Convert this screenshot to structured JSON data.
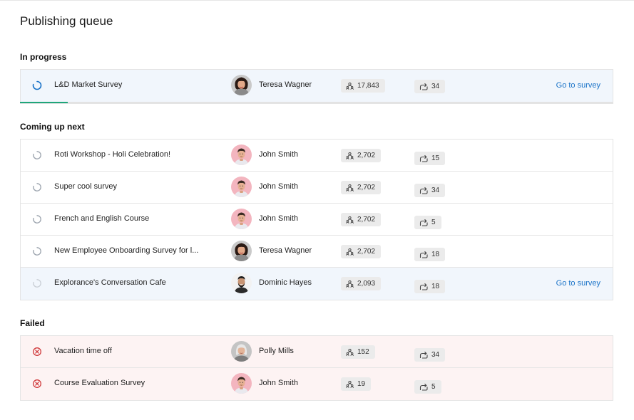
{
  "page": {
    "title": "Publishing queue"
  },
  "sections": {
    "in_progress": {
      "heading": "In progress",
      "rows": [
        {
          "status": "in-progress",
          "survey": "L&D Market Survey",
          "owner": "Teresa Wagner",
          "avatar": "teresa",
          "responses": "17,843",
          "shares": "34",
          "link": "Go to survey",
          "progress": 0.08
        }
      ]
    },
    "next": {
      "heading": "Coming up next",
      "rows": [
        {
          "status": "queued",
          "survey": "Roti Workshop - Holi Celebration!",
          "owner": "John Smith",
          "avatar": "john",
          "responses": "2,702",
          "shares": "15"
        },
        {
          "status": "queued",
          "survey": "Super cool survey",
          "owner": "John Smith",
          "avatar": "john",
          "responses": "2,702",
          "shares": "34"
        },
        {
          "status": "queued",
          "survey": "French and English Course",
          "owner": "John Smith",
          "avatar": "john",
          "responses": "2,702",
          "shares": "5"
        },
        {
          "status": "queued",
          "survey": "New Employee Onboarding Survey for l...",
          "owner": "Teresa Wagner",
          "avatar": "teresa",
          "responses": "2,702",
          "shares": "18"
        },
        {
          "status": "queued",
          "survey": "Explorance's Conversation Cafe",
          "owner": "Dominic Hayes",
          "avatar": "dominic",
          "responses": "2,093",
          "shares": "18",
          "link": "Go to survey"
        }
      ]
    },
    "failed": {
      "heading": "Failed",
      "rows": [
        {
          "status": "failed",
          "survey": "Vacation time off",
          "owner": "Polly Mills",
          "avatar": "polly",
          "responses": "152",
          "shares": "34"
        },
        {
          "status": "failed",
          "survey": "Course Evaluation Survey",
          "owner": "John Smith",
          "avatar": "john",
          "responses": "19",
          "shares": "5"
        }
      ]
    }
  },
  "colors": {
    "accent": "#1a73c8",
    "progress": "#1fa67a",
    "failed": "#d0393b",
    "highlight": "#f1f6fc",
    "failed_bg": "#fdf3f3"
  }
}
